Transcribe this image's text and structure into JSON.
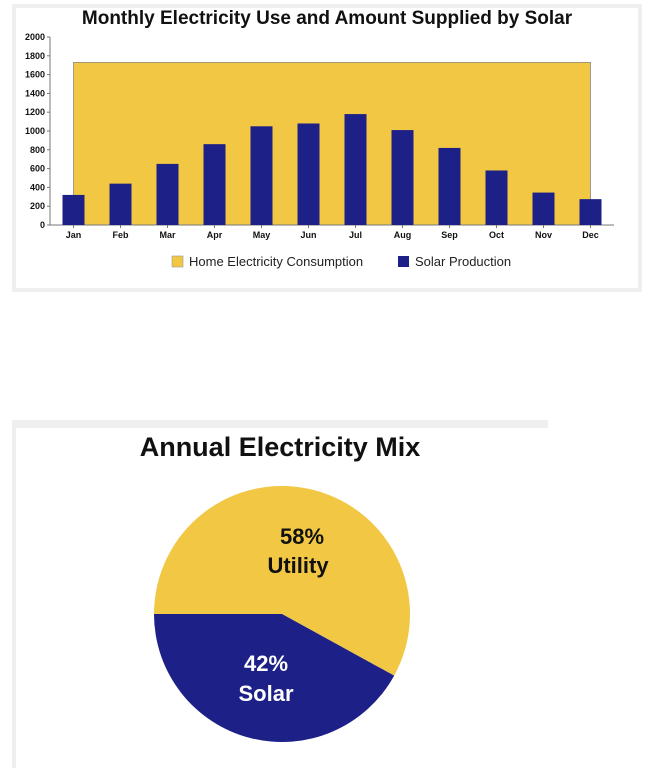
{
  "colors": {
    "consumption": "#F2C744",
    "solar": "#1C2087",
    "axis": "#777777"
  },
  "chart_data": [
    {
      "type": "bar",
      "title": "Monthly Electricity Use and Amount Supplied by Solar",
      "categories": [
        "Jan",
        "Feb",
        "Mar",
        "Apr",
        "May",
        "Jun",
        "Jul",
        "Aug",
        "Sep",
        "Oct",
        "Nov",
        "Dec"
      ],
      "ylim": [
        0,
        2000
      ],
      "yticks": [
        0,
        200,
        400,
        600,
        800,
        1000,
        1200,
        1400,
        1600,
        1800,
        2000
      ],
      "grid": false,
      "legend_position": "bottom",
      "series": [
        {
          "name": "Home Electricity Consumption",
          "type": "area",
          "values": [
            1730,
            1730,
            1730,
            1730,
            1730,
            1730,
            1730,
            1730,
            1730,
            1730,
            1730,
            1730
          ]
        },
        {
          "name": "Solar Production",
          "type": "bar",
          "values": [
            320,
            440,
            650,
            860,
            1050,
            1080,
            1180,
            1010,
            820,
            580,
            345,
            275
          ]
        }
      ]
    },
    {
      "type": "pie",
      "title": "Annual Electricity Mix",
      "slices": [
        {
          "name": "Utility",
          "value": 58,
          "label_pct": "58%",
          "label_name": "Utility"
        },
        {
          "name": "Solar",
          "value": 42,
          "label_pct": "42%",
          "label_name": "Solar"
        }
      ]
    }
  ]
}
